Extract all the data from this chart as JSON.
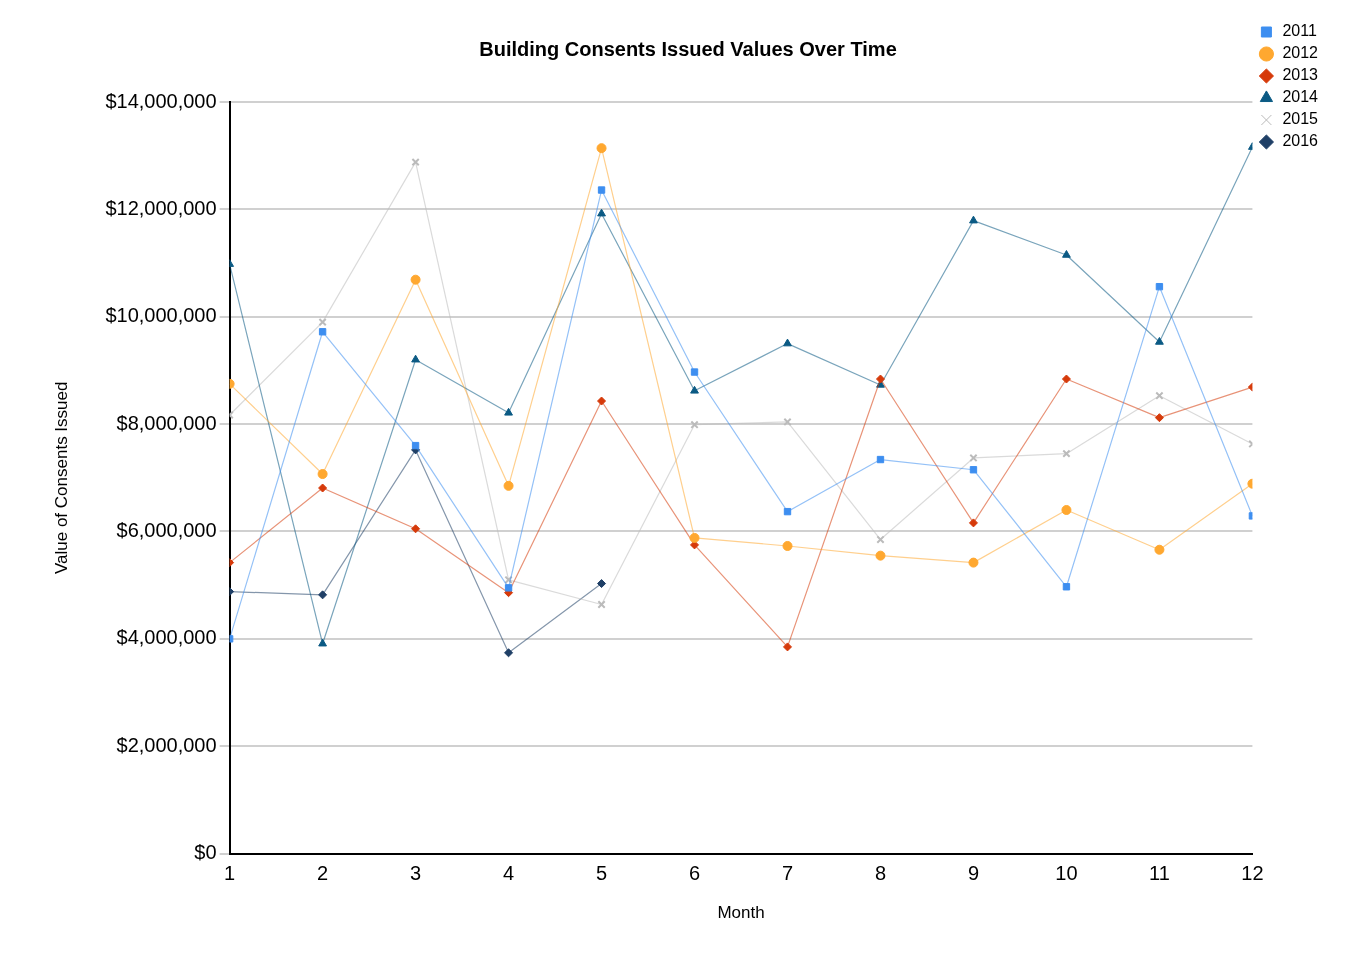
{
  "chart_data": {
    "type": "line",
    "title": "Building Consents Issued Values Over Time",
    "xlabel": "Month",
    "ylabel": "Value of Consents Issued",
    "x": [
      1,
      2,
      3,
      4,
      5,
      6,
      7,
      8,
      9,
      10,
      11,
      12
    ],
    "xlim": [
      1,
      12
    ],
    "xticks": [
      1,
      2,
      3,
      4,
      5,
      6,
      7,
      8,
      9,
      10,
      11,
      12
    ],
    "series": [
      {
        "name": "2011",
        "color": "#3d8ef0",
        "marker": "square",
        "values": [
          4000000,
          9720000,
          7600000,
          4950000,
          12360000,
          8970000,
          6370000,
          7340000,
          7150000,
          4970000,
          10560000,
          6290000
        ]
      },
      {
        "name": "2012",
        "color": "#ffa830",
        "marker": "circle",
        "values": [
          8750000,
          7070000,
          10690000,
          6850000,
          13140000,
          5880000,
          5730000,
          5550000,
          5420000,
          6400000,
          5660000,
          6890000
        ]
      },
      {
        "name": "2013",
        "color": "#d63a0a",
        "marker": "diamond",
        "values": [
          5420000,
          6810000,
          6050000,
          4860000,
          8430000,
          5750000,
          3850000,
          8840000,
          6160000,
          8840000,
          8120000,
          8690000
        ]
      },
      {
        "name": "2014",
        "color": "#0b5a84",
        "marker": "triangle",
        "values": [
          10980000,
          3910000,
          9200000,
          8210000,
          11920000,
          8620000,
          9500000,
          8730000,
          11790000,
          11150000,
          9530000,
          13160000
        ]
      },
      {
        "name": "2015",
        "color": "#bbbbbb",
        "marker": "cross",
        "values": [
          8170000,
          9900000,
          12880000,
          5100000,
          4640000,
          7990000,
          8040000,
          5850000,
          7370000,
          7450000,
          8530000,
          7630000
        ]
      },
      {
        "name": "2016",
        "color": "#1f3f66",
        "marker": "diamond",
        "values": [
          4880000,
          4820000,
          7520000,
          3740000,
          5030000,
          null,
          null,
          null,
          null,
          null,
          null,
          null
        ]
      }
    ],
    "ylim": [
      0,
      14000000
    ],
    "yticks": [
      {
        "value": 0,
        "label": "$0"
      },
      {
        "value": 2000000,
        "label": "$2,000,000"
      },
      {
        "value": 4000000,
        "label": "$4,000,000"
      },
      {
        "value": 6000000,
        "label": "$6,000,000"
      },
      {
        "value": 8000000,
        "label": "$8,000,000"
      },
      {
        "value": 10000000,
        "label": "$10,000,000"
      },
      {
        "value": 12000000,
        "label": "$12,000,000"
      },
      {
        "value": 14000000,
        "label": "$14,000,000"
      }
    ],
    "grid": "y",
    "legend": "top right"
  }
}
